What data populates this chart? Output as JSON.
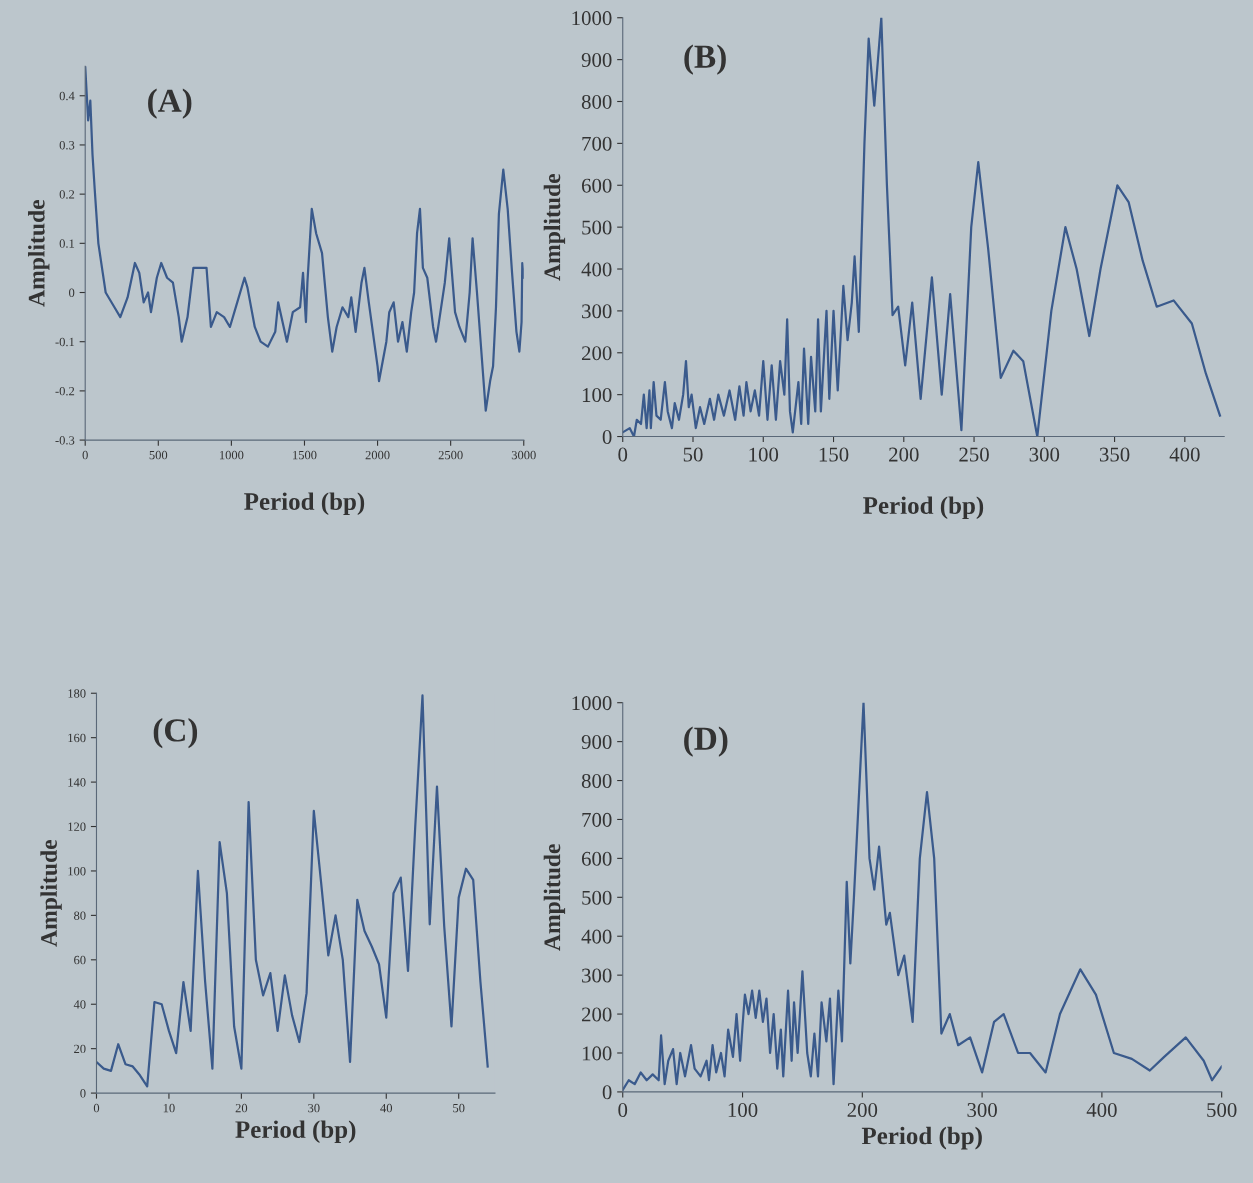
{
  "chart_data": [
    {
      "type": "line",
      "xlabel": "Period (bp)",
      "ylabel": "Amplitude",
      "annotations": [
        "(A)"
      ],
      "xlim": [
        0,
        3000
      ],
      "ylim": [
        -0.3,
        0.46
      ],
      "xticks": [
        0,
        500,
        1000,
        1500,
        2000,
        2500,
        3000
      ],
      "yticks": [
        -0.3,
        -0.2,
        -0.1,
        0,
        0.1,
        0.2,
        0.3,
        0.4
      ],
      "grid": false,
      "legend": false,
      "marker": "none",
      "line_style": "solid",
      "series": [
        {
          "color": "#3a5a8c",
          "x": [
            0,
            20,
            35,
            50,
            65,
            90,
            120,
            140,
            200,
            240,
            290,
            340,
            370,
            400,
            430,
            450,
            490,
            520,
            560,
            600,
            640,
            660,
            700,
            740,
            790,
            830,
            860,
            900,
            950,
            990,
            1040,
            1090,
            1110,
            1160,
            1200,
            1250,
            1300,
            1320,
            1380,
            1420,
            1470,
            1490,
            1510,
            1520,
            1550,
            1580,
            1620,
            1660,
            1690,
            1720,
            1760,
            1800,
            1820,
            1850,
            1890,
            1910,
            1940,
            2000,
            2010,
            2060,
            2080,
            2110,
            2140,
            2170,
            2200,
            2230,
            2250,
            2270,
            2290,
            2310,
            2340,
            2380,
            2400,
            2430,
            2460,
            2490,
            2530,
            2560,
            2600,
            2630,
            2650,
            2680,
            2720,
            2740,
            2770,
            2790,
            2810,
            2830,
            2860,
            2890,
            2920,
            2950,
            2970,
            2985,
            2990,
            3000
          ],
          "values": [
            0.46,
            0.35,
            0.39,
            0.28,
            0.21,
            0.1,
            0.04,
            0.0,
            -0.03,
            -0.05,
            -0.01,
            0.06,
            0.04,
            -0.02,
            0.0,
            -0.04,
            0.03,
            0.06,
            0.03,
            0.02,
            -0.05,
            -0.1,
            -0.05,
            0.05,
            0.05,
            0.05,
            -0.07,
            -0.04,
            -0.05,
            -0.07,
            -0.02,
            0.03,
            0.01,
            -0.07,
            -0.1,
            -0.11,
            -0.08,
            -0.02,
            -0.1,
            -0.04,
            -0.03,
            0.04,
            -0.06,
            0.02,
            0.17,
            0.12,
            0.08,
            -0.05,
            -0.12,
            -0.07,
            -0.03,
            -0.05,
            -0.01,
            -0.08,
            0.02,
            0.05,
            -0.02,
            -0.15,
            -0.18,
            -0.1,
            -0.04,
            -0.02,
            -0.1,
            -0.06,
            -0.12,
            -0.04,
            0.0,
            0.12,
            0.17,
            0.05,
            0.03,
            -0.07,
            -0.1,
            -0.04,
            0.02,
            0.11,
            -0.04,
            -0.07,
            -0.1,
            0.0,
            0.11,
            0.0,
            -0.16,
            -0.24,
            -0.18,
            -0.15,
            -0.03,
            0.16,
            0.25,
            0.17,
            0.04,
            -0.08,
            -0.12,
            -0.06,
            0.06,
            0.03
          ]
        }
      ]
    },
    {
      "type": "line",
      "xlabel": "Period (bp)",
      "ylabel": "Amplitude",
      "annotations": [
        "(B)"
      ],
      "xlim": [
        0,
        428
      ],
      "ylim": [
        0,
        1000
      ],
      "xticks": [
        0,
        50,
        100,
        150,
        200,
        250,
        300,
        350,
        400
      ],
      "yticks": [
        0,
        100,
        200,
        300,
        400,
        500,
        600,
        700,
        800,
        900,
        1000
      ],
      "grid": false,
      "legend": false,
      "marker": "none",
      "line_style": "solid",
      "series": [
        {
          "color": "#3a5a8c",
          "x": [
            0,
            5,
            8,
            10,
            13,
            15,
            17,
            19,
            20,
            22,
            24,
            27,
            30,
            32,
            35,
            37,
            40,
            43,
            45,
            47,
            49,
            52,
            55,
            58,
            62,
            65,
            68,
            72,
            76,
            80,
            83,
            86,
            88,
            91,
            94,
            97,
            100,
            103,
            106,
            109,
            112,
            115,
            117,
            119,
            121,
            125,
            127,
            129,
            132,
            134,
            137,
            139,
            141,
            145,
            147,
            150,
            153,
            157,
            160,
            163,
            165,
            168,
            172,
            175,
            179,
            184,
            188,
            192,
            196,
            201,
            206,
            212,
            220,
            227,
            233,
            241,
            248,
            253,
            260,
            269,
            278,
            285,
            295,
            305,
            315,
            323,
            332,
            340,
            352,
            360,
            370,
            380,
            392,
            405,
            415,
            425
          ],
          "values": [
            10,
            20,
            0,
            40,
            30,
            100,
            20,
            110,
            20,
            130,
            50,
            40,
            130,
            60,
            20,
            80,
            40,
            100,
            180,
            70,
            100,
            20,
            70,
            30,
            90,
            40,
            100,
            50,
            110,
            40,
            120,
            50,
            130,
            60,
            110,
            50,
            180,
            40,
            170,
            40,
            180,
            100,
            280,
            60,
            10,
            130,
            30,
            210,
            30,
            190,
            60,
            280,
            60,
            300,
            90,
            300,
            110,
            360,
            230,
            320,
            430,
            250,
            700,
            950,
            790,
            1000,
            600,
            290,
            310,
            170,
            320,
            90,
            380,
            100,
            340,
            15,
            500,
            655,
            450,
            140,
            205,
            180,
            0,
            300,
            500,
            400,
            240,
            400,
            600,
            560,
            420,
            310,
            325,
            270,
            150,
            50
          ]
        }
      ]
    },
    {
      "type": "line",
      "xlabel": "Period (bp)",
      "ylabel": "Amplitude",
      "annotations": [
        "(C)"
      ],
      "xlim": [
        0,
        55
      ],
      "ylim": [
        0,
        180
      ],
      "xticks": [
        0,
        10,
        20,
        30,
        40,
        50
      ],
      "yticks": [
        0,
        20,
        40,
        60,
        80,
        100,
        120,
        140,
        160,
        180
      ],
      "grid": false,
      "legend": false,
      "marker": "none",
      "line_style": "solid",
      "series": [
        {
          "color": "#3a5a8c",
          "x": [
            0,
            1,
            2,
            3,
            4,
            5,
            6,
            7,
            8,
            9,
            10,
            11,
            12,
            13,
            14,
            15,
            16,
            17,
            18,
            19,
            20,
            21,
            22,
            23,
            24,
            25,
            26,
            27,
            28,
            29,
            30,
            31,
            32,
            33,
            34,
            35,
            36,
            37,
            38,
            39,
            40,
            41,
            42,
            43,
            44,
            45,
            46,
            47,
            48,
            49,
            50,
            51,
            52,
            53,
            54
          ],
          "values": [
            14,
            11,
            10,
            22,
            13,
            12,
            8,
            3,
            41,
            40,
            28,
            18,
            50,
            28,
            100,
            50,
            11,
            113,
            90,
            30,
            11,
            131,
            60,
            44,
            54,
            28,
            53,
            35,
            23,
            45,
            127,
            95,
            62,
            80,
            60,
            14,
            87,
            73,
            66,
            58,
            34,
            90,
            97,
            55,
            120,
            179,
            76,
            138,
            75,
            30,
            88,
            101,
            96,
            50,
            12
          ]
        }
      ]
    },
    {
      "type": "line",
      "xlabel": "Period (bp)",
      "ylabel": "Amplitude",
      "annotations": [
        "(D)"
      ],
      "xlim": [
        0,
        500
      ],
      "ylim": [
        0,
        1000
      ],
      "xticks": [
        0,
        100,
        200,
        300,
        400,
        500
      ],
      "yticks": [
        0,
        100,
        200,
        300,
        400,
        500,
        600,
        700,
        800,
        900,
        1000
      ],
      "grid": false,
      "legend": false,
      "marker": "none",
      "line_style": "solid",
      "series": [
        {
          "color": "#3a5a8c",
          "x": [
            0,
            5,
            10,
            15,
            20,
            25,
            30,
            32,
            35,
            38,
            42,
            45,
            48,
            52,
            57,
            60,
            65,
            70,
            72,
            75,
            78,
            82,
            85,
            88,
            92,
            95,
            98,
            100,
            102,
            105,
            108,
            111,
            114,
            117,
            120,
            123,
            126,
            129,
            132,
            134,
            138,
            141,
            143,
            146,
            150,
            154,
            157,
            160,
            163,
            166,
            170,
            173,
            176,
            180,
            183,
            187,
            190,
            193,
            201,
            206,
            210,
            214,
            220,
            223,
            230,
            235,
            242,
            248,
            254,
            260,
            266,
            273,
            280,
            290,
            300,
            310,
            318,
            330,
            340,
            353,
            365,
            382,
            395,
            410,
            425,
            440,
            452,
            470,
            485,
            492,
            500
          ],
          "values": [
            5,
            30,
            20,
            50,
            30,
            45,
            30,
            145,
            20,
            80,
            110,
            20,
            100,
            40,
            120,
            60,
            40,
            80,
            30,
            120,
            50,
            100,
            40,
            160,
            90,
            200,
            80,
            170,
            250,
            200,
            260,
            190,
            260,
            180,
            240,
            100,
            200,
            60,
            160,
            40,
            260,
            80,
            230,
            100,
            310,
            100,
            40,
            150,
            40,
            230,
            130,
            240,
            20,
            260,
            130,
            540,
            330,
            500,
            1000,
            600,
            520,
            630,
            430,
            460,
            300,
            350,
            180,
            600,
            770,
            600,
            150,
            200,
            120,
            140,
            50,
            180,
            200,
            100,
            100,
            50,
            200,
            315,
            250,
            100,
            85,
            55,
            90,
            140,
            80,
            30,
            65
          ]
        }
      ]
    }
  ]
}
